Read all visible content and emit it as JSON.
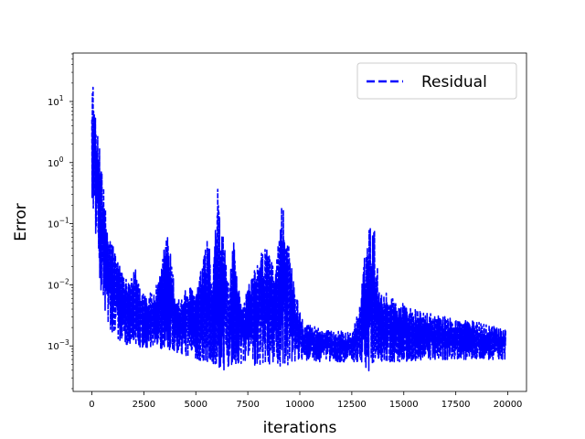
{
  "chart_data": {
    "type": "line",
    "title": "",
    "xlabel": "iterations",
    "ylabel": "Error",
    "yscale": "log",
    "xlim": [
      -900,
      20900
    ],
    "ylim": [
      0.00018,
      62
    ],
    "xticks": [
      0,
      2500,
      5000,
      7500,
      10000,
      12500,
      15000,
      17500,
      20000
    ],
    "xtick_labels": [
      "0",
      "2500",
      "5000",
      "7500",
      "10000",
      "12500",
      "15000",
      "17500",
      "20000"
    ],
    "yticks": [
      0.001,
      0.01,
      0.1,
      1,
      10
    ],
    "ytick_labels": [
      {
        "base": "10",
        "exp": "−3"
      },
      {
        "base": "10",
        "exp": "−2"
      },
      {
        "base": "10",
        "exp": "−1"
      },
      {
        "base": "10",
        "exp": "0"
      },
      {
        "base": "10",
        "exp": "1"
      }
    ],
    "grid": false,
    "legend_position": "top-right",
    "series": [
      {
        "name": "Residual",
        "color": "#0000ff",
        "linestyle": "dashed",
        "upper_envelope": {
          "x": [
            0,
            100,
            200,
            300,
            400,
            500,
            600,
            800,
            1000,
            1200,
            1500,
            1800,
            2100,
            2400,
            2700,
            3000,
            3300,
            3600,
            3800,
            4000,
            4300,
            4600,
            5000,
            5400,
            5600,
            5800,
            6000,
            6100,
            6200,
            6400,
            6600,
            6800,
            7000,
            7300,
            7600,
            7900,
            8100,
            8400,
            8600,
            8800,
            9000,
            9200,
            9300,
            9400,
            9600,
            9800,
            10000,
            10300,
            10600,
            11000,
            11500,
            12000,
            12500,
            12900,
            13200,
            13400,
            13600,
            13800,
            14000,
            14300,
            14600,
            15000,
            15500,
            16000,
            16500,
            17000,
            17500,
            18000,
            18500,
            19000,
            19500,
            19900
          ],
          "y": [
            35,
            12,
            4,
            2.5,
            3,
            1.1,
            0.25,
            0.08,
            0.05,
            0.03,
            0.015,
            0.01,
            0.02,
            0.009,
            0.007,
            0.008,
            0.015,
            0.09,
            0.03,
            0.008,
            0.006,
            0.01,
            0.008,
            0.03,
            0.08,
            0.01,
            0.2,
            0.6,
            0.1,
            0.05,
            0.008,
            0.06,
            0.01,
            0.006,
            0.012,
            0.02,
            0.03,
            0.05,
            0.03,
            0.015,
            0.12,
            0.3,
            0.15,
            0.08,
            0.02,
            0.008,
            0.004,
            0.0025,
            0.0022,
            0.002,
            0.0018,
            0.0018,
            0.0016,
            0.005,
            0.06,
            0.11,
            0.08,
            0.01,
            0.008,
            0.007,
            0.006,
            0.005,
            0.004,
            0.0035,
            0.0033,
            0.003,
            0.0028,
            0.0027,
            0.0025,
            0.0023,
            0.0021,
            0.002
          ]
        },
        "lower_envelope": {
          "x": [
            0,
            200,
            400,
            600,
            800,
            1000,
            1500,
            2000,
            2500,
            3000,
            3500,
            4000,
            4500,
            5000,
            5500,
            6000,
            6200,
            6500,
            7000,
            7500,
            8000,
            8500,
            9000,
            9500,
            10000,
            10500,
            11000,
            11500,
            12000,
            12500,
            13000,
            13300,
            13600,
            14000,
            14500,
            15000,
            16000,
            17000,
            18000,
            19000,
            19900
          ],
          "y": [
            0.3,
            0.06,
            0.01,
            0.004,
            0.002,
            0.0015,
            0.0011,
            0.001,
            0.00095,
            0.0009,
            0.0009,
            0.0008,
            0.0007,
            0.0006,
            0.00055,
            0.0005,
            0.00035,
            0.00045,
            0.0005,
            0.00055,
            0.00045,
            0.0005,
            0.00045,
            0.0005,
            0.00055,
            0.0006,
            0.00055,
            0.00055,
            0.00055,
            0.00055,
            0.00055,
            0.00037,
            0.0006,
            0.00055,
            0.00055,
            0.00055,
            0.0006,
            0.0006,
            0.0006,
            0.0006,
            0.0006
          ]
        }
      }
    ]
  }
}
